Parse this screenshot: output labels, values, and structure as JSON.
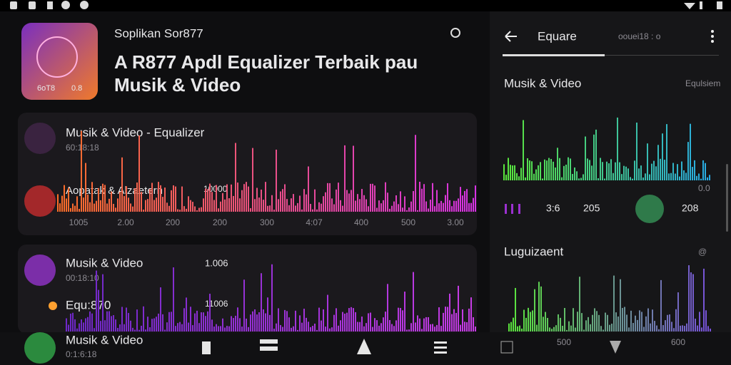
{
  "status_bar": {},
  "app_icon": {
    "labels": [
      "6oT8",
      "0.8"
    ]
  },
  "header": {
    "subtitle": "Soplikan Sor877",
    "title_lines": [
      "A R877  Apdl Equalizer Terbaik  pau",
      "Musik & Video"
    ]
  },
  "card1": {
    "title": "Musik & Video - Equalizer",
    "subtitle": "60:18:18",
    "label": "Aopatak & Alzaetern",
    "value": "10000",
    "axis_labels": [
      "1005",
      "2.00",
      "200",
      "200",
      "300",
      "4:07",
      "400",
      "500",
      "3.00"
    ]
  },
  "card2": {
    "title": "Musik & Video",
    "subtitle": "00:18:10",
    "value": "1.006",
    "label": "Equ:870",
    "value2": "11006"
  },
  "bottom_item": {
    "title": "Musik & Video",
    "subtitle": "0:1:6:18"
  },
  "panel": {
    "tab": "Equare",
    "tab_meta": "oouei18 : o",
    "section1": "Musik & Video",
    "section1_meta": "Equlsiem",
    "scale_label": "0.0",
    "controls": [
      "3:6",
      "205",
      "208"
    ],
    "section2": "Luguizaent",
    "section2_meta": "@",
    "footer": [
      "500",
      "600"
    ]
  }
}
